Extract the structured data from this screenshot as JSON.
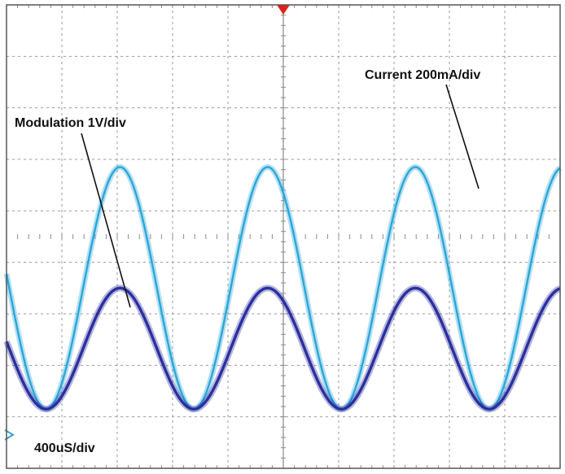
{
  "chart_data": {
    "type": "line",
    "title": "",
    "xlabel": "",
    "ylabel": "",
    "grid": true,
    "divisions": {
      "horizontal": 10,
      "vertical": 9
    },
    "timebase_label": "400uS/div",
    "x_unit": "div",
    "y_unit": "div",
    "xlim": [
      0,
      10
    ],
    "ylim": [
      -4.5,
      4.5
    ],
    "series": [
      {
        "name": "Current 200mA/div",
        "color": "#2aa7d8",
        "waveform": "sine",
        "period_div": 2.667,
        "first_peak_div": 2.05,
        "max_div": 1.35,
        "min_div": -3.35
      },
      {
        "name": "Modulation 1V/div",
        "color": "#2b2f9e",
        "waveform": "sine",
        "period_div": 2.667,
        "first_peak_div": 2.05,
        "max_div": -1.0,
        "min_div": -3.35
      }
    ],
    "trigger_marker_color": "#e0201a",
    "ground_marker_color": "#3aa0d0"
  }
}
